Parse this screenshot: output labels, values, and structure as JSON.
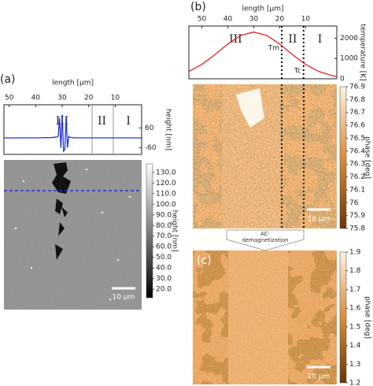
{
  "panels": {
    "a": "(a)",
    "b": "(b)",
    "c": "(c)"
  },
  "chart_data": [
    {
      "type": "line",
      "xlabel": "length [µm]",
      "ylabel": "height [nm]",
      "xlim": [
        52,
        0
      ],
      "xticks": [
        50,
        40,
        30,
        20,
        10
      ],
      "ylim": [
        -100,
        200
      ],
      "yticks": [
        60,
        -60
      ],
      "x": [
        52,
        40,
        34,
        32,
        31.5,
        31,
        30.5,
        30,
        29.5,
        29,
        28.5,
        28,
        27.5,
        27,
        25,
        20,
        10,
        0
      ],
      "series": [
        {
          "name": "height",
          "color": "#2233dd",
          "values": [
            0,
            0,
            2,
            5,
            10,
            120,
            -60,
            140,
            -80,
            -70,
            130,
            -60,
            10,
            3,
            0,
            0,
            0,
            0
          ]
        }
      ],
      "boundaries": [
        18.7,
        10.7
      ],
      "boundary_style": "solid",
      "regions": [
        "III",
        "II",
        "I"
      ]
    },
    {
      "type": "line",
      "xlabel": "length [µm]",
      "ylabel": "temperature [K]",
      "xlim": [
        55,
        -2
      ],
      "xticks": [
        50,
        40,
        30,
        20,
        10
      ],
      "ylim": [
        0,
        2600
      ],
      "yticks": [
        0,
        1000,
        2000
      ],
      "x": [
        55,
        50,
        45,
        40,
        35,
        30,
        25,
        20,
        15,
        10,
        5,
        0,
        -2
      ],
      "series": [
        {
          "name": "temperature",
          "color": "#dd2222",
          "values": [
            362,
            706,
            1182,
            1711,
            2136,
            2300,
            2136,
            1711,
            1182,
            706,
            362,
            161,
            111
          ]
        }
      ],
      "boundaries": [
        19.2,
        10.8
      ],
      "boundary_style": "dotted",
      "regions": [
        "III",
        "II",
        "I"
      ],
      "annotations": [
        "Tm",
        "Tc"
      ]
    }
  ],
  "colorbars": [
    {
      "label": "height [nm]",
      "lim": [
        12,
        138
      ],
      "ticks": [
        {
          "value": 130,
          "label": "130.0"
        },
        {
          "value": 120,
          "label": "120.0"
        },
        {
          "value": 110,
          "label": "110.0"
        },
        {
          "value": 100,
          "label": "100.0"
        },
        {
          "value": 90,
          "label": "90.0"
        },
        {
          "value": 80,
          "label": "80.0"
        },
        {
          "value": 70,
          "label": "70.0"
        },
        {
          "value": 60,
          "label": "60.0"
        },
        {
          "value": 50,
          "label": "50.0"
        },
        {
          "value": 40,
          "label": "40.0"
        },
        {
          "value": 30,
          "label": "30.0"
        },
        {
          "value": 20,
          "label": "20.0"
        }
      ]
    },
    {
      "label": "phase [deg]",
      "lim": [
        75.8,
        76.9
      ],
      "ticks": [
        76.9,
        76.8,
        76.7,
        76.6,
        76.5,
        76.4,
        76.3,
        76.2,
        76.1,
        76,
        75.9,
        75.8
      ]
    },
    {
      "label": "phase [deg]",
      "lim": [
        1.2,
        1.9
      ],
      "ticks": [
        1.9,
        1.8,
        1.7,
        1.6,
        1.5,
        1.4,
        1.3,
        1.2
      ]
    }
  ],
  "scale_bar": "10 µm",
  "arrow_label": [
    "AC-",
    "demagnetization"
  ]
}
